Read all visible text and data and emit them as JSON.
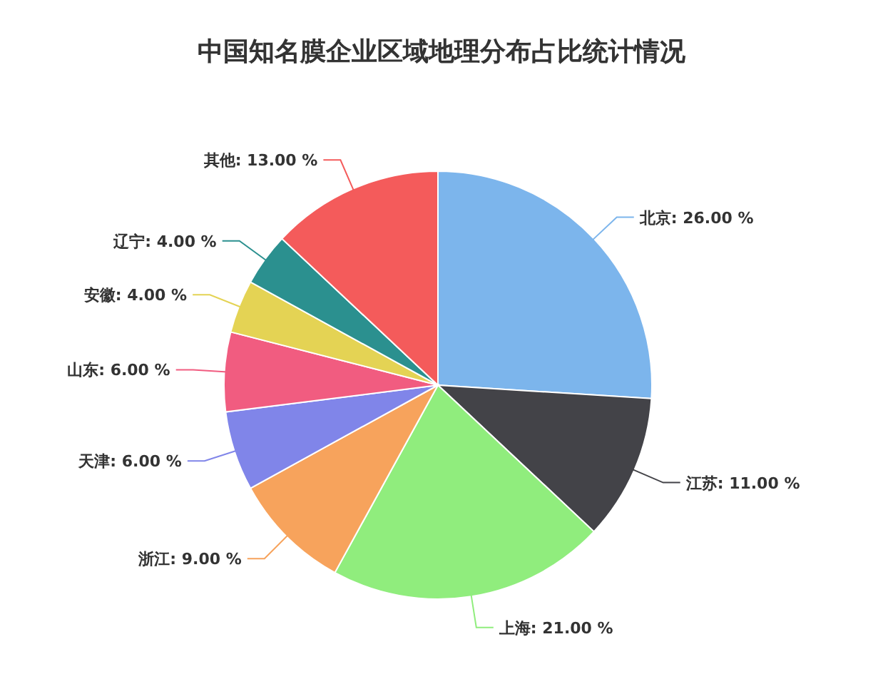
{
  "chart_data": {
    "type": "pie",
    "title": "中国知名膜企业区域地理分布占比统计情况",
    "categories": [
      "北京",
      "江苏",
      "上海",
      "浙江",
      "天津",
      "山东",
      "安徽",
      "辽宁",
      "其他"
    ],
    "values": [
      26,
      11,
      21,
      9,
      6,
      6,
      4,
      4,
      13
    ],
    "value_labels": [
      "26.00 %",
      "11.00 %",
      "21.00 %",
      "9.00 %",
      "6.00 %",
      "6.00 %",
      "4.00 %",
      "4.00 %",
      "13.00 %"
    ],
    "colors": [
      "#7cb5ec",
      "#434348",
      "#90ed7d",
      "#f7a35c",
      "#8085e9",
      "#f15c80",
      "#e4d354",
      "#2b908f",
      "#f45b5b"
    ]
  }
}
